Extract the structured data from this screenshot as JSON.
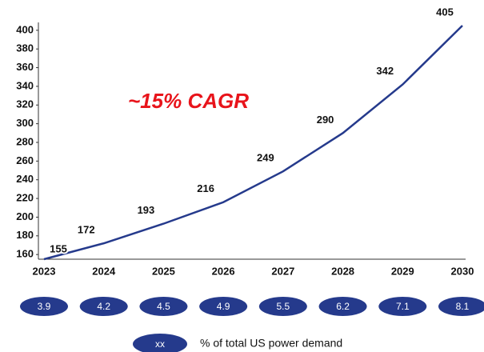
{
  "chart_data": {
    "type": "line",
    "categories": [
      "2023",
      "2024",
      "2025",
      "2026",
      "2027",
      "2028",
      "2029",
      "2030"
    ],
    "values": [
      155,
      172,
      193,
      216,
      249,
      290,
      342,
      405
    ],
    "color": "#253a8c",
    "ylim": [
      155,
      405
    ],
    "yticks": [
      160,
      180,
      200,
      220,
      240,
      260,
      280,
      300,
      320,
      340,
      360,
      380,
      400
    ],
    "annotation": "~15% CAGR",
    "shares": [
      3.9,
      4.2,
      4.5,
      4.9,
      5.5,
      6.2,
      7.1,
      8.1
    ],
    "legend_symbol": "xx",
    "legend_label": "% of total US power demand"
  }
}
